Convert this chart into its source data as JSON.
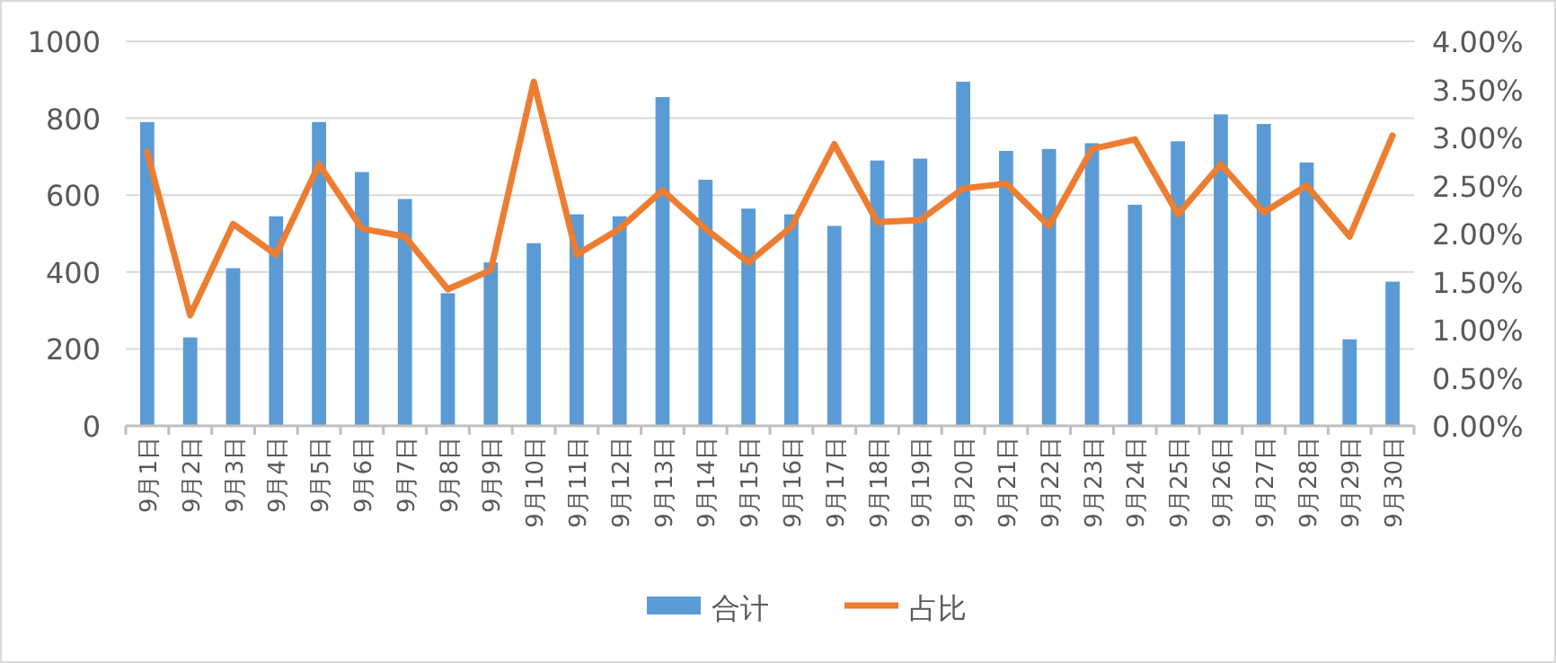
{
  "chart_data": {
    "type": "bar",
    "categories": [
      "9月1日",
      "9月2日",
      "9月3日",
      "9月4日",
      "9月5日",
      "9月6日",
      "9月7日",
      "9月8日",
      "9月9日",
      "9月10日",
      "9月11日",
      "9月12日",
      "9月13日",
      "9月14日",
      "9月15日",
      "9月16日",
      "9月17日",
      "9月18日",
      "9月19日",
      "9月20日",
      "9月21日",
      "9月22日",
      "9月23日",
      "9月24日",
      "9月25日",
      "9月26日",
      "9月27日",
      "9月28日",
      "9月29日",
      "9月30日"
    ],
    "series": [
      {
        "name": "合计",
        "color": "#5b9bd5",
        "values": [
          790,
          230,
          410,
          545,
          790,
          660,
          590,
          345,
          425,
          475,
          550,
          545,
          855,
          640,
          565,
          550,
          520,
          690,
          695,
          895,
          715,
          720,
          735,
          575,
          740,
          810,
          785,
          685,
          225,
          375
        ]
      },
      {
        "name": "占比",
        "type": "line",
        "axis": "y2",
        "color": "#ed7d31",
        "values": [
          2.85,
          1.15,
          2.1,
          1.78,
          2.72,
          2.05,
          1.97,
          1.42,
          1.62,
          3.58,
          1.78,
          2.05,
          2.45,
          2.05,
          1.7,
          2.07,
          2.93,
          2.12,
          2.14,
          2.47,
          2.52,
          2.08,
          2.88,
          2.98,
          2.2,
          2.72,
          2.22,
          2.5,
          1.97,
          3.02
        ]
      }
    ],
    "ylim": [
      0,
      1000
    ],
    "yticks": [
      0,
      200,
      400,
      600,
      800,
      1000
    ],
    "y2lim": [
      0,
      4
    ],
    "y2ticks": [
      {
        "value": 0,
        "label": "0.00%"
      },
      {
        "value": 0.5,
        "label": "0.50%"
      },
      {
        "value": 1,
        "label": "1.00%"
      },
      {
        "value": 1.5,
        "label": "1.50%"
      },
      {
        "value": 2,
        "label": "2.00%"
      },
      {
        "value": 2.5,
        "label": "2.50%"
      },
      {
        "value": 3,
        "label": "3.00%"
      },
      {
        "value": 3.5,
        "label": "3.50%"
      },
      {
        "value": 4,
        "label": "4.00%"
      }
    ],
    "grid": "y",
    "legend": "bottom",
    "marker": "none",
    "line_style": "solid"
  }
}
